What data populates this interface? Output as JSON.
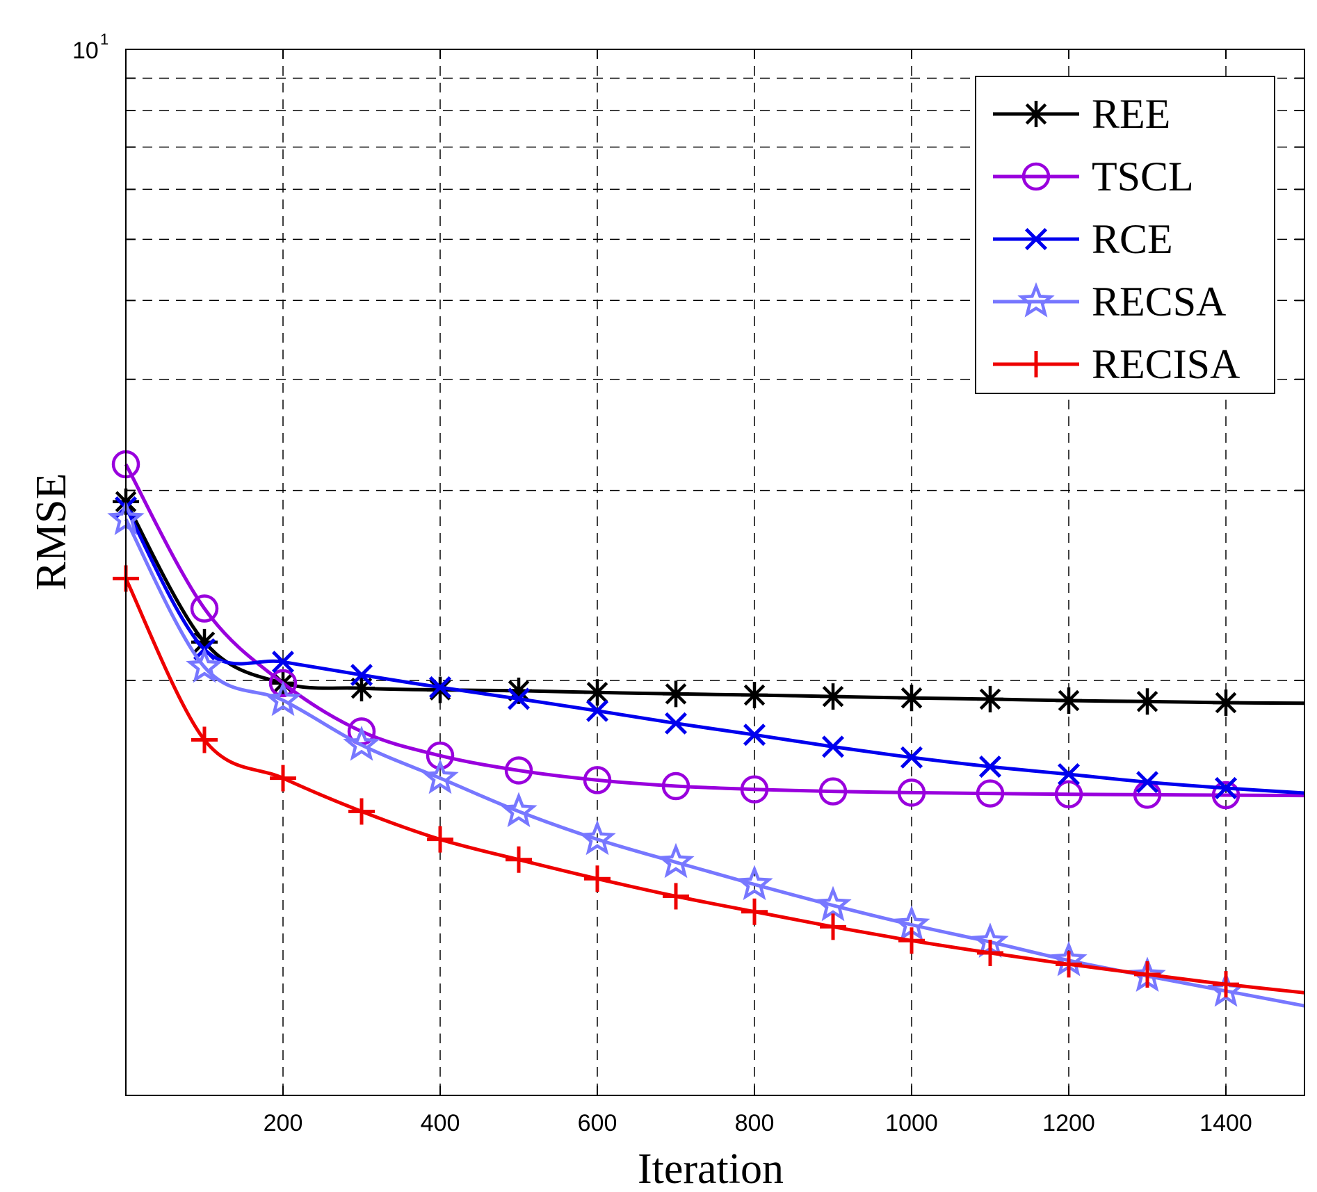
{
  "chart_data": {
    "type": "line",
    "yscale": "log",
    "xlabel": "Iteration",
    "ylabel": "RMSE",
    "xlim": [
      0,
      1500
    ],
    "ylim": [
      0.22,
      10
    ],
    "xticks": [
      200,
      400,
      600,
      800,
      1000,
      1200,
      1400
    ],
    "xtick_labels": [
      "200",
      "400",
      "600",
      "800",
      "1000",
      "1200",
      "1400"
    ],
    "ytick_label": {
      "base": "10",
      "exponent": "1"
    },
    "grid": true,
    "legend_position": "top-right",
    "series": [
      {
        "name": "REE",
        "color": "#000000",
        "marker": "asterisk",
        "x": [
          0,
          100,
          200,
          300,
          400,
          500,
          600,
          700,
          800,
          900,
          1000,
          1100,
          1200,
          1300,
          1400,
          1500
        ],
        "values": [
          1.92,
          1.15,
          0.99,
          0.972,
          0.966,
          0.963,
          0.957,
          0.952,
          0.948,
          0.943,
          0.938,
          0.934,
          0.929,
          0.926,
          0.922,
          0.92
        ]
      },
      {
        "name": "TSCL",
        "color": "#9900dd",
        "marker": "circle",
        "x": [
          0,
          100,
          200,
          300,
          400,
          500,
          600,
          700,
          800,
          900,
          1000,
          1100,
          1200,
          1300,
          1400,
          1500
        ],
        "values": [
          2.2,
          1.3,
          0.99,
          0.83,
          0.76,
          0.72,
          0.695,
          0.68,
          0.672,
          0.667,
          0.664,
          0.662,
          0.66,
          0.659,
          0.658,
          0.657
        ]
      },
      {
        "name": "RCE",
        "color": "#0000ee",
        "marker": "x",
        "x": [
          0,
          100,
          200,
          300,
          400,
          500,
          600,
          700,
          800,
          900,
          1000,
          1100,
          1200,
          1300,
          1400,
          1500
        ],
        "values": [
          1.88,
          1.12,
          1.07,
          1.02,
          0.975,
          0.935,
          0.895,
          0.855,
          0.82,
          0.785,
          0.755,
          0.73,
          0.71,
          0.69,
          0.675,
          0.663
        ]
      },
      {
        "name": "RECSA",
        "color": "#7777ff",
        "marker": "star",
        "x": [
          0,
          100,
          200,
          300,
          400,
          500,
          600,
          700,
          800,
          900,
          1000,
          1100,
          1200,
          1300,
          1400,
          1500
        ],
        "values": [
          1.8,
          1.05,
          0.93,
          0.79,
          0.7,
          0.62,
          0.56,
          0.515,
          0.475,
          0.44,
          0.41,
          0.385,
          0.36,
          0.34,
          0.322,
          0.305
        ]
      },
      {
        "name": "RECISA",
        "color": "#ee0000",
        "marker": "plus",
        "x": [
          0,
          100,
          200,
          300,
          400,
          500,
          600,
          700,
          800,
          900,
          1000,
          1100,
          1200,
          1300,
          1400,
          1500
        ],
        "values": [
          1.45,
          0.805,
          0.7,
          0.62,
          0.56,
          0.52,
          0.485,
          0.455,
          0.43,
          0.407,
          0.387,
          0.37,
          0.355,
          0.342,
          0.33,
          0.32
        ]
      }
    ]
  }
}
